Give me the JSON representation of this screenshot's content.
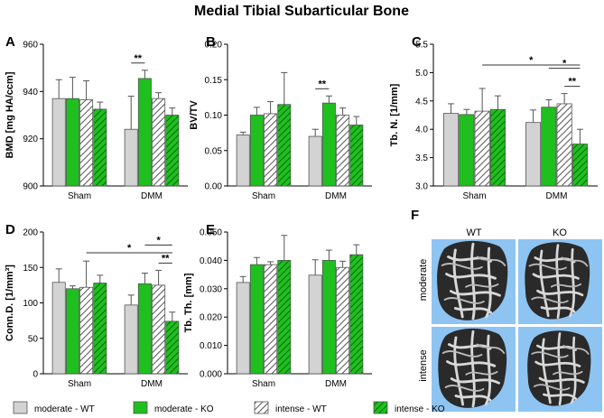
{
  "title": "Medial Tibial Subarticular Bone",
  "colors": {
    "moderate_wt": "#d3d3d3",
    "moderate_ko": "#1fbf1f",
    "intense_wt": "#ffffff",
    "intense_ko": "#1fbf1f",
    "hatch": "#555555",
    "edge": "#555555",
    "panel_bg": "#8ec4f2"
  },
  "legend": [
    "moderate - WT",
    "moderate - KO",
    "intense - WT",
    "intense - KO"
  ],
  "chart_data": [
    {
      "panel": "A",
      "type": "bar",
      "ylabel": "BMD [mg HA/ccm]",
      "ylim": [
        900,
        960
      ],
      "yticks": [
        "900",
        "920",
        "940",
        "960"
      ],
      "categories": [
        "Sham",
        "DMM"
      ],
      "series": [
        {
          "name": "moderate - WT",
          "values": [
            937,
            924
          ],
          "errors": [
            8,
            14
          ]
        },
        {
          "name": "moderate - KO",
          "values": [
            937,
            945.5
          ],
          "errors": [
            9,
            3.5
          ]
        },
        {
          "name": "intense - WT",
          "values": [
            936.5,
            937
          ],
          "errors": [
            8,
            2.5
          ]
        },
        {
          "name": "intense - KO",
          "values": [
            932.5,
            930
          ],
          "errors": [
            3,
            3
          ]
        }
      ],
      "significance": [
        {
          "group": 1,
          "from": 0,
          "to": 1,
          "label": "**"
        }
      ]
    },
    {
      "panel": "B",
      "type": "bar",
      "ylabel": "BV/TV",
      "ylim": [
        0,
        0.2
      ],
      "yticks": [
        "0.00",
        "0.05",
        "0.10",
        "0.15",
        "0.20"
      ],
      "categories": [
        "Sham",
        "DMM"
      ],
      "series": [
        {
          "name": "moderate - WT",
          "values": [
            0.072,
            0.07
          ],
          "errors": [
            0.004,
            0.01
          ]
        },
        {
          "name": "moderate - KO",
          "values": [
            0.1,
            0.117
          ],
          "errors": [
            0.011,
            0.01
          ]
        },
        {
          "name": "intense - WT",
          "values": [
            0.102,
            0.1
          ],
          "errors": [
            0.017,
            0.01
          ]
        },
        {
          "name": "intense - KO",
          "values": [
            0.115,
            0.086
          ],
          "errors": [
            0.045,
            0.012
          ]
        }
      ],
      "significance": [
        {
          "group": 1,
          "from": 0,
          "to": 1,
          "label": "**"
        }
      ]
    },
    {
      "panel": "C",
      "type": "bar",
      "ylabel": "Tb. N. [1/mm]",
      "ylim": [
        3.0,
        5.5
      ],
      "yticks": [
        "3.0",
        "3.5",
        "4.0",
        "4.5",
        "5.0",
        "5.5"
      ],
      "categories": [
        "Sham",
        "DMM"
      ],
      "series": [
        {
          "name": "moderate - WT",
          "values": [
            4.28,
            4.12
          ],
          "errors": [
            0.17,
            0.22
          ]
        },
        {
          "name": "moderate - KO",
          "values": [
            4.26,
            4.39
          ],
          "errors": [
            0.09,
            0.13
          ]
        },
        {
          "name": "intense - WT",
          "values": [
            4.32,
            4.45
          ],
          "errors": [
            0.4,
            0.18
          ]
        },
        {
          "name": "intense - KO",
          "values": [
            4.35,
            3.74
          ],
          "errors": [
            0.24,
            0.26
          ]
        }
      ],
      "significance": [
        {
          "group": 1,
          "from": 2,
          "to": 3,
          "label": "**"
        },
        {
          "group": 1,
          "from": 1,
          "to": 3,
          "label": "*"
        },
        {
          "cross": true,
          "from_group": 0,
          "from": 2,
          "to_group": 1,
          "to": 3,
          "label": "*"
        }
      ]
    },
    {
      "panel": "D",
      "type": "bar",
      "ylabel": "Conn.D. [1/mm³]",
      "ylim": [
        0,
        200
      ],
      "yticks": [
        "0",
        "50",
        "100",
        "150",
        "200"
      ],
      "categories": [
        "Sham",
        "DMM"
      ],
      "series": [
        {
          "name": "moderate - WT",
          "values": [
            129,
            97
          ],
          "errors": [
            19,
            14
          ]
        },
        {
          "name": "moderate - KO",
          "values": [
            120,
            127
          ],
          "errors": [
            4,
            15
          ]
        },
        {
          "name": "intense - WT",
          "values": [
            122,
            125
          ],
          "errors": [
            37,
            21
          ]
        },
        {
          "name": "intense - KO",
          "values": [
            128,
            74
          ],
          "errors": [
            11,
            13
          ]
        }
      ],
      "significance": [
        {
          "group": 1,
          "from": 2,
          "to": 3,
          "label": "**"
        },
        {
          "group": 1,
          "from": 1,
          "to": 3,
          "label": "*"
        },
        {
          "cross": true,
          "from_group": 0,
          "from": 2,
          "to_group": 1,
          "to": 3,
          "label": "*"
        }
      ]
    },
    {
      "panel": "E",
      "type": "bar",
      "ylabel": "Tb. Th. [mm]",
      "ylim": [
        0,
        0.05
      ],
      "yticks": [
        "0.000",
        "0.010",
        "0.020",
        "0.030",
        "0.040",
        "0.050"
      ],
      "categories": [
        "Sham",
        "DMM"
      ],
      "series": [
        {
          "name": "moderate - WT",
          "values": [
            0.0322,
            0.0348
          ],
          "errors": [
            0.0021,
            0.0054
          ]
        },
        {
          "name": "moderate - KO",
          "values": [
            0.0385,
            0.04
          ],
          "errors": [
            0.0025,
            0.0036
          ]
        },
        {
          "name": "intense - WT",
          "values": [
            0.0385,
            0.0375
          ],
          "errors": [
            0.001,
            0.0022
          ]
        },
        {
          "name": "intense - KO",
          "values": [
            0.04,
            0.042
          ],
          "errors": [
            0.0088,
            0.0035
          ]
        }
      ],
      "significance": []
    }
  ],
  "panel_f": {
    "letter": "F",
    "columns": [
      "WT",
      "KO"
    ],
    "rows": [
      "moderate",
      "intense"
    ]
  }
}
